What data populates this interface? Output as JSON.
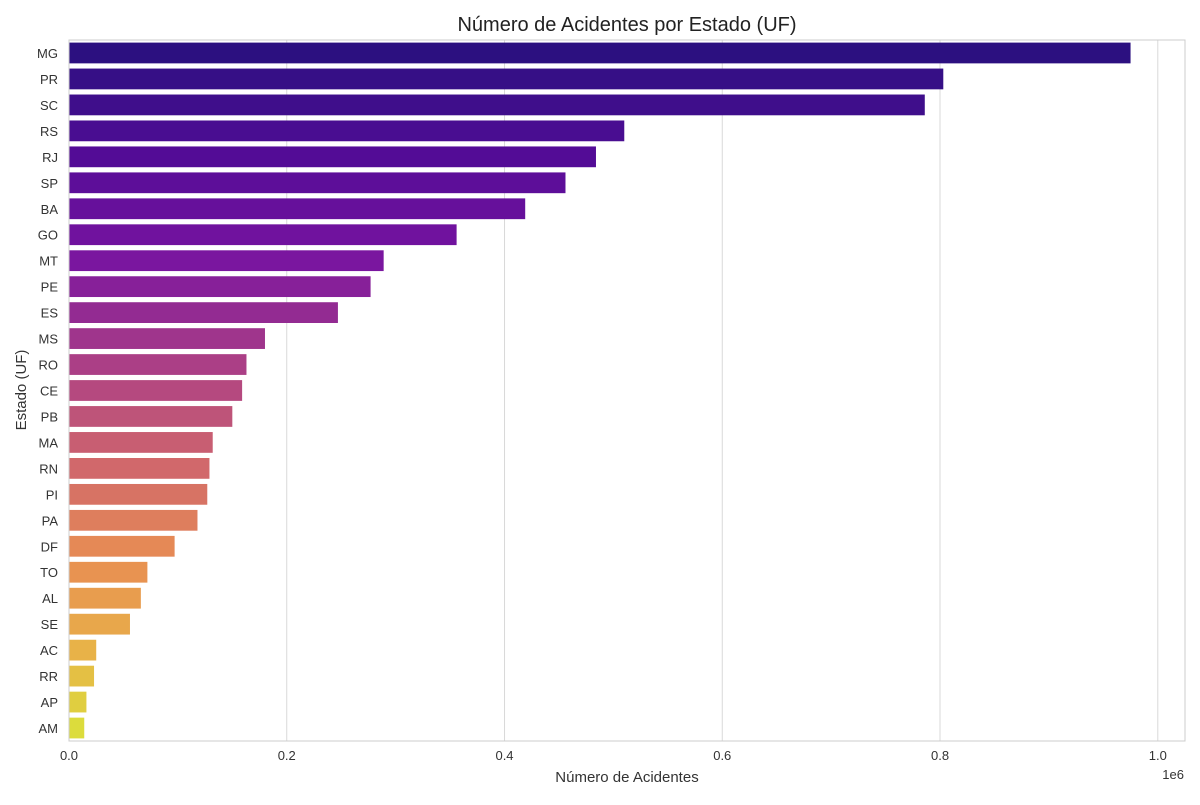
{
  "chart_data": {
    "type": "bar",
    "orientation": "horizontal",
    "title": "Número de Acidentes por Estado (UF)",
    "xlabel": "Número de Acidentes",
    "ylabel": "Estado (UF)",
    "x_offset_label": "1e6",
    "xlim": [
      0,
      1.025
    ],
    "xticks": [
      0.0,
      0.2,
      0.4,
      0.6,
      0.8,
      1.0
    ],
    "xtick_labels": [
      "0.0",
      "0.2",
      "0.4",
      "0.6",
      "0.8",
      "1.0"
    ],
    "grid": true,
    "palette": "plasma",
    "color_range": [
      "#2c1080",
      "#dcdc3c"
    ],
    "categories": [
      "MG",
      "PR",
      "SC",
      "RS",
      "RJ",
      "SP",
      "BA",
      "GO",
      "MT",
      "PE",
      "ES",
      "MS",
      "RO",
      "CE",
      "PB",
      "MA",
      "RN",
      "PI",
      "PA",
      "DF",
      "TO",
      "AL",
      "SE",
      "AC",
      "RR",
      "AP",
      "AM"
    ],
    "values": [
      0.975,
      0.803,
      0.786,
      0.51,
      0.484,
      0.456,
      0.419,
      0.356,
      0.289,
      0.277,
      0.247,
      0.18,
      0.163,
      0.159,
      0.15,
      0.132,
      0.129,
      0.127,
      0.118,
      0.097,
      0.072,
      0.066,
      0.056,
      0.025,
      0.023,
      0.016,
      0.014
    ]
  }
}
